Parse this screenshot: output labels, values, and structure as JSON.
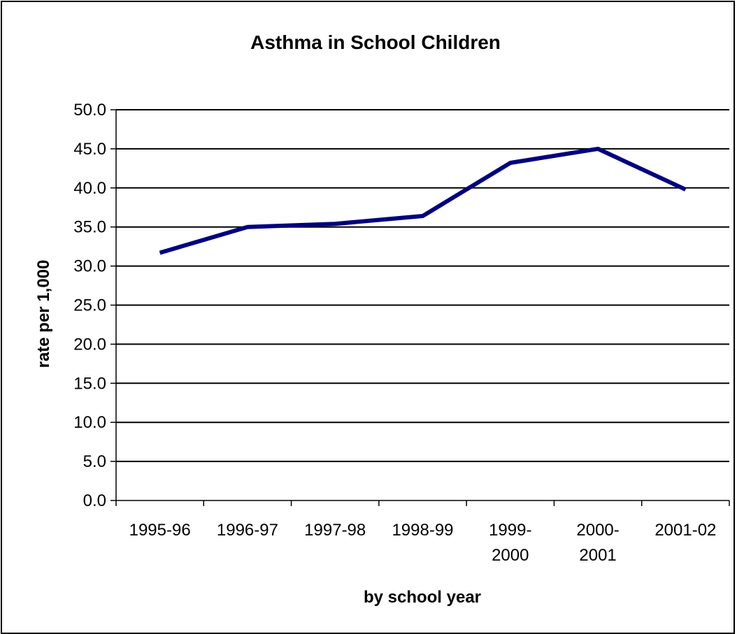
{
  "chart_data": {
    "type": "line",
    "title": "Asthma in School Children",
    "xlabel": "by school year",
    "ylabel": "rate per 1,000",
    "categories": [
      [
        "1995-96"
      ],
      [
        "1996-97"
      ],
      [
        "1997-98"
      ],
      [
        "1998-99"
      ],
      [
        "1999-",
        "2000"
      ],
      [
        "2000-",
        "2001"
      ],
      [
        "2001-02"
      ]
    ],
    "series": [
      {
        "values": [
          31.7,
          35.0,
          35.4,
          36.4,
          43.2,
          45.0,
          39.8
        ],
        "color": "#000080"
      }
    ],
    "ylim": [
      0,
      50
    ],
    "ytick_step": 5,
    "ytick_labels": [
      "0.0",
      "5.0",
      "10.0",
      "15.0",
      "20.0",
      "25.0",
      "30.0",
      "35.0",
      "40.0",
      "45.0",
      "50.0"
    ],
    "grid": true,
    "legend": "none"
  }
}
